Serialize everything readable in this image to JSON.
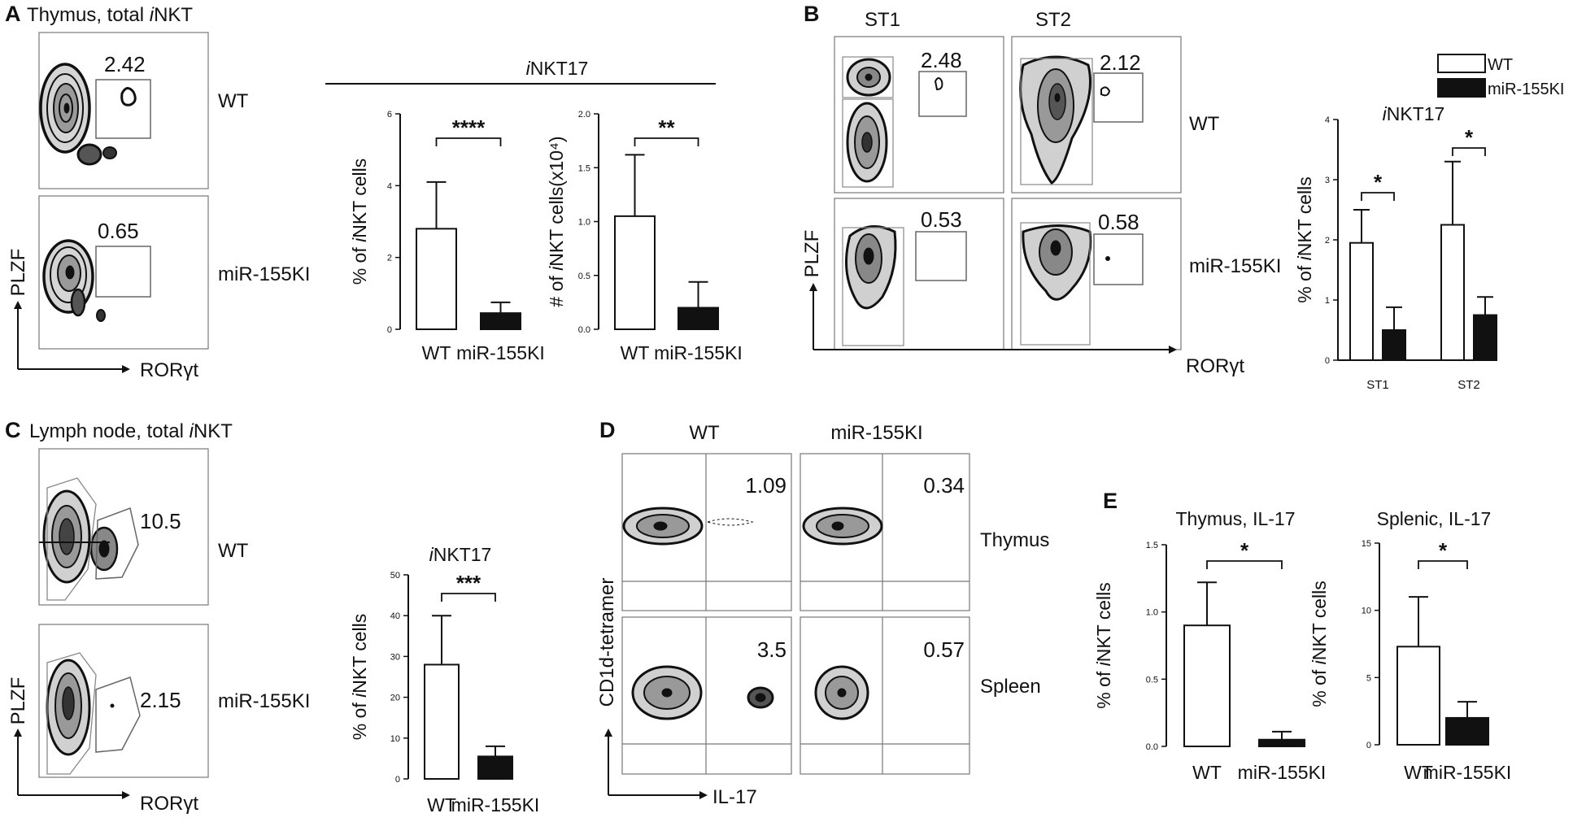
{
  "panels": {
    "A": {
      "letter": "A",
      "title_prefix": "Thymus, total ",
      "title_italic": "i",
      "title_suffix": "NKT",
      "gates": [
        "2.42",
        "0.65"
      ],
      "rows": [
        "WT",
        "miR-155KI"
      ],
      "xaxis": "RORγt",
      "yaxis": "PLZF",
      "group_header_italic": "i",
      "group_header_rest": "NKT17"
    },
    "B": {
      "letter": "B",
      "cols": [
        "ST1",
        "ST2"
      ],
      "gates": [
        "2.48",
        "2.12",
        "0.53",
        "0.58"
      ],
      "rows": [
        "WT",
        "miR-155KI"
      ],
      "xaxis": "RORγt",
      "yaxis": "PLZF",
      "legend": [
        "WT",
        "miR-155KI"
      ]
    },
    "C": {
      "letter": "C",
      "title_prefix": "Lymph node, total ",
      "title_italic": "i",
      "title_suffix": "NKT",
      "gates": [
        "10.5",
        "2.15"
      ],
      "rows": [
        "WT",
        "miR-155KI"
      ],
      "xaxis": "RORγt",
      "yaxis": "PLZF"
    },
    "D": {
      "letter": "D",
      "cols": [
        "WT",
        "miR-155KI"
      ],
      "gates": [
        "1.09",
        "0.34",
        "3.5",
        "0.57"
      ],
      "rows": [
        "Thymus",
        "Spleen"
      ],
      "xaxis": "IL-17",
      "yaxis": "CD1d-tetramer"
    },
    "E": {
      "letter": "E"
    }
  },
  "chart_data": [
    {
      "id": "A-percent",
      "type": "bar",
      "categories": [
        "WT",
        "miR-155KI"
      ],
      "values": [
        2.8,
        0.45
      ],
      "errors": [
        1.3,
        0.3
      ],
      "ylim": [
        0,
        6
      ],
      "yticks": [
        "0",
        "2",
        "4",
        "6"
      ],
      "ylabel": "% of iNKT cells",
      "significance": "****",
      "title": ""
    },
    {
      "id": "A-number",
      "type": "bar",
      "categories": [
        "WT",
        "miR-155KI"
      ],
      "values": [
        1.05,
        0.2
      ],
      "errors": [
        0.57,
        0.24
      ],
      "ylim": [
        0,
        2.0
      ],
      "yticks": [
        "0.0",
        "0.5",
        "1.0",
        "1.5",
        "2.0"
      ],
      "ylabel": "# of iNKT cells(x10⁴)",
      "significance": "**",
      "title": ""
    },
    {
      "id": "B-grouped",
      "type": "bar",
      "categories": [
        "ST1",
        "ST2"
      ],
      "series": [
        {
          "name": "WT",
          "values": [
            1.95,
            2.25
          ],
          "errors": [
            0.55,
            1.05
          ]
        },
        {
          "name": "miR-155KI",
          "values": [
            0.5,
            0.75
          ],
          "errors": [
            0.38,
            0.3
          ]
        }
      ],
      "ylim": [
        0,
        4
      ],
      "yticks": [
        "0",
        "1",
        "2",
        "3",
        "4"
      ],
      "ylabel": "% of iNKT cells",
      "title": "iNKT17",
      "significance": [
        "*",
        "*"
      ]
    },
    {
      "id": "C-percent",
      "type": "bar",
      "categories": [
        "WT",
        "miR-155KI"
      ],
      "values": [
        28,
        5.5
      ],
      "errors": [
        12,
        2.5
      ],
      "ylim": [
        0,
        50
      ],
      "yticks": [
        "0",
        "10",
        "20",
        "30",
        "40",
        "50"
      ],
      "ylabel": "% of iNKT cells",
      "title": "iNKT17",
      "significance": "***"
    },
    {
      "id": "E-thymus",
      "type": "bar",
      "categories": [
        "WT",
        "miR-155KI"
      ],
      "values": [
        0.9,
        0.05
      ],
      "errors": [
        0.32,
        0.06
      ],
      "ylim": [
        0,
        1.5
      ],
      "yticks": [
        "0.0",
        "0.5",
        "1.0",
        "1.5"
      ],
      "ylabel": "% of iNKT cells",
      "title": "Thymus, IL-17",
      "significance": "*"
    },
    {
      "id": "E-spleen",
      "type": "bar",
      "categories": [
        "WT",
        "miR-155KI"
      ],
      "values": [
        7.3,
        2.0
      ],
      "errors": [
        3.7,
        1.2
      ],
      "ylim": [
        0,
        15
      ],
      "yticks": [
        "0",
        "5",
        "10",
        "15"
      ],
      "ylabel": "% of iNKT cells",
      "title": "Splenic, IL-17",
      "significance": "*"
    }
  ]
}
